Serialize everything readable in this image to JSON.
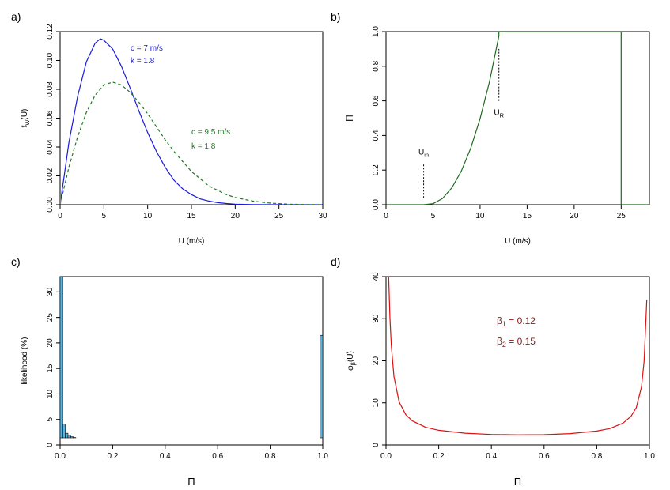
{
  "chart_data": [
    {
      "panel_label": "a)",
      "type": "line",
      "title": "",
      "xlabel": "U (m/s)",
      "ylabel": "f_W(U)",
      "ylabel_parts": {
        "base": "f",
        "sub": "W",
        "rest": "(U)"
      },
      "xlim": [
        0,
        30
      ],
      "ylim": [
        0,
        0.12
      ],
      "xticks": [
        0,
        5,
        10,
        15,
        20,
        25,
        30
      ],
      "xtick_labels": [
        "0",
        "5",
        "10",
        "15",
        "20",
        "25",
        "30"
      ],
      "yticks": [
        0,
        0.02,
        0.04,
        0.06,
        0.08,
        0.1,
        0.12
      ],
      "ytick_labels": [
        "0.00",
        "0.02",
        "0.04",
        "0.06",
        "0.08",
        "0.10",
        "0.12"
      ],
      "series": [
        {
          "name": "c = 7 m/s, k = 1.8",
          "style": "solid",
          "color": "#1a1adb",
          "c": 7,
          "k": 1.8,
          "x": [
            0,
            1,
            2,
            3,
            4,
            4.6,
            5,
            6,
            7,
            8,
            9,
            10,
            11,
            12,
            13,
            14,
            15,
            16,
            17,
            18,
            19,
            20,
            22,
            25,
            30
          ],
          "y": [
            0,
            0.043,
            0.075,
            0.099,
            0.112,
            0.115,
            0.114,
            0.108,
            0.096,
            0.081,
            0.065,
            0.05,
            0.037,
            0.026,
            0.017,
            0.011,
            0.007,
            0.004,
            0.0025,
            0.0014,
            0.0008,
            0.0004,
            0.0001,
            0,
            0
          ]
        },
        {
          "name": "c = 9.5 m/s, k = 1.8",
          "style": "dashed",
          "color": "#1e7a1e",
          "c": 9.5,
          "k": 1.8,
          "x": [
            0,
            1,
            2,
            3,
            4,
            5,
            6,
            7,
            8,
            9,
            10,
            11,
            12,
            13,
            14,
            15,
            16,
            17,
            18,
            19,
            20,
            22,
            24,
            26,
            28,
            30
          ],
          "y": [
            0,
            0.026,
            0.047,
            0.064,
            0.076,
            0.083,
            0.085,
            0.083,
            0.078,
            0.071,
            0.063,
            0.054,
            0.045,
            0.037,
            0.03,
            0.023,
            0.018,
            0.013,
            0.01,
            0.007,
            0.005,
            0.0025,
            0.0011,
            0.0004,
            0.0001,
            0
          ]
        }
      ],
      "annotations": [
        {
          "id": "c1",
          "text": "c = 7 m/s",
          "color": "#1a1adb"
        },
        {
          "id": "k1",
          "text": "k = 1.8",
          "color": "#1a1adb"
        },
        {
          "id": "c2",
          "text": "c = 9.5 m/s",
          "color": "#1e7a1e"
        },
        {
          "id": "k2",
          "text": "k = 1.8",
          "color": "#1e7a1e"
        }
      ]
    },
    {
      "panel_label": "b)",
      "type": "line",
      "title": "",
      "xlabel": "U (m/s)",
      "ylabel": "Π",
      "xlim": [
        0,
        28
      ],
      "ylim": [
        0,
        1
      ],
      "xticks": [
        0,
        5,
        10,
        15,
        20,
        25
      ],
      "xtick_labels": [
        "0",
        "5",
        "10",
        "15",
        "20",
        "25"
      ],
      "yticks": [
        0,
        0.2,
        0.4,
        0.6,
        0.8,
        1.0
      ],
      "ytick_labels": [
        "0.0",
        "0.2",
        "0.4",
        "0.6",
        "0.8",
        "1.0"
      ],
      "series": [
        {
          "name": "power curve",
          "style": "solid",
          "color": "#1e6b1e",
          "x": [
            0,
            4,
            5,
            6,
            7,
            8,
            9,
            10,
            11,
            12,
            12,
            25,
            25,
            28
          ],
          "y": [
            0,
            0,
            0.006,
            0.036,
            0.098,
            0.193,
            0.325,
            0.497,
            0.71,
            0.975,
            1.0,
            1.0,
            0,
            0
          ]
        }
      ],
      "markers": [
        {
          "id": "u_in",
          "label_base": "U",
          "label_sub": "in",
          "x": 4,
          "y0": 0.04,
          "y1": 0.24
        },
        {
          "id": "u_r",
          "label_base": "U",
          "label_sub": "R",
          "x": 12,
          "y0": 0.6,
          "y1": 0.9
        }
      ]
    },
    {
      "panel_label": "c)",
      "type": "bar",
      "title": "",
      "xlabel": "Π",
      "ylabel": "likelihood (%)",
      "xlim": [
        0,
        1
      ],
      "ylim": [
        0,
        33
      ],
      "xticks": [
        0,
        0.2,
        0.4,
        0.6,
        0.8,
        1.0
      ],
      "xtick_labels": [
        "0.0",
        "0.2",
        "0.4",
        "0.6",
        "0.8",
        "1.0"
      ],
      "yticks": [
        0,
        5,
        10,
        15,
        20,
        25,
        30
      ],
      "ytick_labels": [
        "0",
        "5",
        "10",
        "15",
        "20",
        "25",
        "30"
      ],
      "bar_color": "#5ab4e0",
      "bin_width": 0.01,
      "values": [
        33,
        4.1,
        2.3,
        1.9,
        1.6,
        1.45,
        1.3,
        1.2,
        1.12,
        1.05,
        1.0,
        0.95,
        0.9,
        0.86,
        0.82,
        0.79,
        0.76,
        0.73,
        0.7,
        0.68,
        0.66,
        0.64,
        0.62,
        0.6,
        0.58,
        0.57,
        0.55,
        0.54,
        0.52,
        0.51,
        0.5,
        0.49,
        0.48,
        0.47,
        0.46,
        0.45,
        0.44,
        0.43,
        0.43,
        0.42,
        0.41,
        0.41,
        0.4,
        0.39,
        0.39,
        0.38,
        0.38,
        0.37,
        0.37,
        0.36,
        0.36,
        0.35,
        0.35,
        0.34,
        0.34,
        0.33,
        0.33,
        0.33,
        0.32,
        0.32,
        0.31,
        0.31,
        0.31,
        0.3,
        0.3,
        0.3,
        0.29,
        0.29,
        0.29,
        0.28,
        0.28,
        0.28,
        0.28,
        0.27,
        0.27,
        0.27,
        0.27,
        0.26,
        0.26,
        0.26,
        0.26,
        0.25,
        0.25,
        0.25,
        0.25,
        0.25,
        0.24,
        0.24,
        0.24,
        0.24,
        0.24,
        0.24,
        0.23,
        0.23,
        0.23,
        0.23,
        0.23,
        0.23,
        0.22,
        21.5
      ]
    },
    {
      "panel_label": "d)",
      "type": "line",
      "title": "",
      "xlabel": "Π",
      "ylabel": "φ_β(U)",
      "ylabel_parts": {
        "base": "φ",
        "sub": "β",
        "rest": "(U)"
      },
      "xlim": [
        0,
        1
      ],
      "ylim": [
        0,
        40
      ],
      "xticks": [
        0,
        0.2,
        0.4,
        0.6,
        0.8,
        1.0
      ],
      "xtick_labels": [
        "0.0",
        "0.2",
        "0.4",
        "0.6",
        "0.8",
        "1.0"
      ],
      "yticks": [
        0,
        10,
        20,
        30,
        40
      ],
      "ytick_labels": [
        "0",
        "10",
        "20",
        "30",
        "40"
      ],
      "series": [
        {
          "name": "beta density",
          "style": "solid",
          "color": "#dd1111",
          "beta1": 0.12,
          "beta2": 0.15,
          "x": [
            0.01,
            0.015,
            0.02,
            0.03,
            0.05,
            0.075,
            0.1,
            0.15,
            0.2,
            0.3,
            0.4,
            0.5,
            0.6,
            0.7,
            0.8,
            0.85,
            0.9,
            0.93,
            0.95,
            0.97,
            0.98,
            0.99
          ],
          "y": [
            40,
            30,
            23.6,
            16.3,
            10.2,
            7.2,
            5.7,
            4.2,
            3.5,
            2.8,
            2.5,
            2.4,
            2.45,
            2.7,
            3.3,
            3.9,
            5.2,
            6.8,
            8.8,
            13.8,
            19.9,
            34.5
          ]
        }
      ],
      "annotations": [
        {
          "id": "b1",
          "base": "β",
          "sub": "1",
          "rest": " = 0.12",
          "color": "#8b1a1a"
        },
        {
          "id": "b2",
          "base": "β",
          "sub": "2",
          "rest": " = 0.15",
          "color": "#8b1a1a"
        }
      ]
    }
  ]
}
